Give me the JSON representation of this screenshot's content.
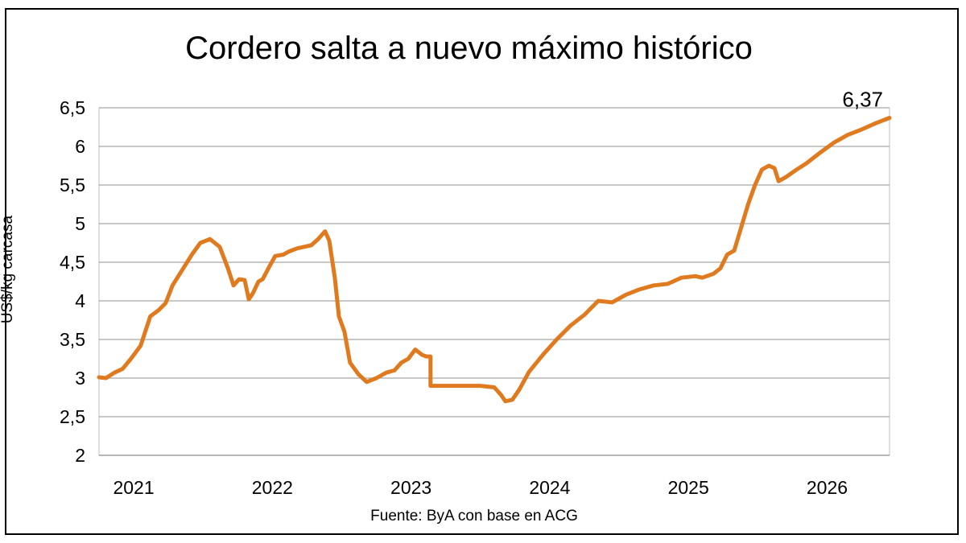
{
  "chart_data": {
    "type": "line",
    "title": "Cordero salta a nuevo máximo histórico",
    "ylabel": "US$/kg carcasa",
    "xlabel": "",
    "source": "Fuente: ByA con base en ACG",
    "ylim": [
      2,
      6.5
    ],
    "xlim": [
      2020.85,
      2026.55
    ],
    "yticks": [
      {
        "value": 2,
        "label": "2"
      },
      {
        "value": 2.5,
        "label": "2,5"
      },
      {
        "value": 3,
        "label": "3"
      },
      {
        "value": 3.5,
        "label": "3,5"
      },
      {
        "value": 4,
        "label": "4"
      },
      {
        "value": 4.5,
        "label": "4,5"
      },
      {
        "value": 5,
        "label": "5"
      },
      {
        "value": 5.5,
        "label": "5,5"
      },
      {
        "value": 6,
        "label": "6"
      },
      {
        "value": 6.5,
        "label": "6,5"
      }
    ],
    "xticks": [
      {
        "value": 2021.1,
        "label": "2021"
      },
      {
        "value": 2022.1,
        "label": "2022"
      },
      {
        "value": 2023.1,
        "label": "2023"
      },
      {
        "value": 2024.1,
        "label": "2024"
      },
      {
        "value": 2025.1,
        "label": "2025"
      },
      {
        "value": 2026.1,
        "label": "2026"
      }
    ],
    "grid": true,
    "color": "#E07A1F",
    "annotation": {
      "text": "6,37",
      "x": 2026.55,
      "y": 6.37
    },
    "series": [
      {
        "x": [
          2020.85,
          2020.9,
          2020.96,
          2021.02,
          2021.08,
          2021.15,
          2021.22,
          2021.28,
          2021.33,
          2021.38,
          2021.45,
          2021.52,
          2021.58,
          2021.65,
          2021.72,
          2021.78,
          2021.82,
          2021.86,
          2021.9,
          2021.93,
          2021.96,
          2022.0,
          2022.03,
          2022.08,
          2022.12,
          2022.18,
          2022.22,
          2022.28,
          2022.33,
          2022.38,
          2022.43,
          2022.48,
          2022.51,
          2022.55,
          2022.58,
          2022.62,
          2022.66,
          2022.72,
          2022.78,
          2022.85,
          2022.92,
          2022.98,
          2023.03,
          2023.08,
          2023.13,
          2023.18,
          2023.21,
          2023.24,
          2023.24,
          2023.4,
          2023.6,
          2023.7,
          2023.75,
          2023.78,
          2023.83,
          2023.88,
          2023.95,
          2024.05,
          2024.15,
          2024.25,
          2024.35,
          2024.45,
          2024.55,
          2024.65,
          2024.75,
          2024.85,
          2024.95,
          2025.05,
          2025.15,
          2025.2,
          2025.28,
          2025.33,
          2025.38,
          2025.43,
          2025.48,
          2025.53,
          2025.58,
          2025.63,
          2025.68,
          2025.72,
          2025.75,
          2025.8,
          2025.88,
          2025.95,
          2026.05,
          2026.15,
          2026.25,
          2026.35,
          2026.45,
          2026.55
        ],
        "y": [
          3.01,
          3.0,
          3.07,
          3.12,
          3.25,
          3.42,
          3.8,
          3.88,
          3.97,
          4.2,
          4.4,
          4.6,
          4.75,
          4.8,
          4.7,
          4.42,
          4.2,
          4.28,
          4.27,
          4.02,
          4.1,
          4.25,
          4.28,
          4.45,
          4.58,
          4.6,
          4.64,
          4.68,
          4.7,
          4.72,
          4.8,
          4.9,
          4.78,
          4.3,
          3.8,
          3.6,
          3.2,
          3.05,
          2.95,
          3.0,
          3.07,
          3.1,
          3.2,
          3.25,
          3.37,
          3.3,
          3.28,
          3.28,
          2.9,
          2.9,
          2.9,
          2.88,
          2.78,
          2.7,
          2.72,
          2.85,
          3.08,
          3.3,
          3.5,
          3.68,
          3.82,
          4.0,
          3.98,
          4.08,
          4.15,
          4.2,
          4.22,
          4.3,
          4.32,
          4.3,
          4.35,
          4.42,
          4.6,
          4.65,
          4.95,
          5.25,
          5.5,
          5.7,
          5.75,
          5.72,
          5.55,
          5.6,
          5.7,
          5.78,
          5.92,
          6.05,
          6.15,
          6.22,
          6.3,
          6.37
        ]
      }
    ]
  }
}
